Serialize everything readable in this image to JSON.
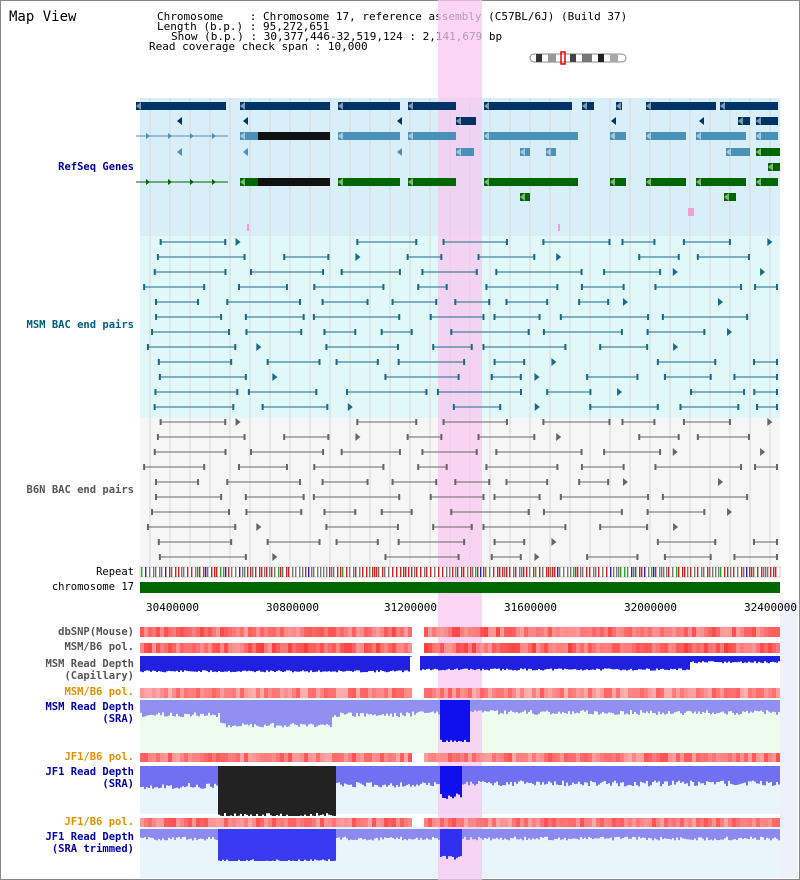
{
  "app": {
    "title": "Map View"
  },
  "info": {
    "chromosome_key": "Chromosome",
    "chromosome_value": "Chromosome 17, reference assembly (C57BL/6J) (Build 37)",
    "length_key": "Length (b.p.)",
    "length_value": "95,272,651",
    "show_key": "Show (b.p.)",
    "show_value": "30,377,446-32,519,124 : 2,141,679 bp",
    "span_key": "Read coverage check span",
    "span_value": "10,000"
  },
  "tracks": {
    "refseq": "RefSeq Genes",
    "msm_bac": "MSM BAC end pairs",
    "b6n_bac": "B6N BAC end pairs",
    "repeat": "Repeat",
    "chromosome": "chromosome 17",
    "dbsnp": "dbSNP(Mouse)",
    "msm_pol_1": "MSM/B6 pol.",
    "msm_depth_cap": "MSM Read Depth\n(Capillary)",
    "msm_pol_2": "MSM/B6 pol.",
    "msm_depth_sra": "MSM Read Depth\n(SRA)",
    "jf1_pol_1": "JF1/B6 pol.",
    "jf1_depth_sra": "JF1 Read Depth\n(SRA)",
    "jf1_pol_2": "JF1/B6 pol.",
    "jf1_depth_trim": "JF1 Read Depth\n(SRA trimmed)"
  },
  "axis": {
    "ticks": [
      "30400000",
      "30800000",
      "31200000",
      "31600000",
      "32000000",
      "32400000"
    ]
  },
  "colors": {
    "refseq_label": "#000099",
    "msm_label": "#006080",
    "b6n_label": "#555555",
    "orange_label": "#e09000",
    "depth_label": "#0000aa",
    "highlight": "#f8c8f0",
    "chromosome": "#006600"
  }
}
